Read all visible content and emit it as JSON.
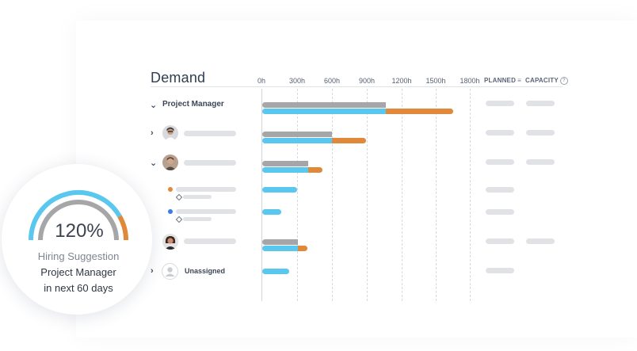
{
  "demand": {
    "title": "Demand",
    "ticks": [
      "0h",
      "300h",
      "600h",
      "900h",
      "1200h",
      "1500h",
      "1800h"
    ],
    "columns": {
      "planned": "PLANNED",
      "capacity": "CAPACITY",
      "planned_icon": "sort-icon",
      "capacity_icon": "help-icon"
    },
    "rows": [
      {
        "label": "Project Manager",
        "expander": "expanded",
        "gray_hours": 1070,
        "blue_hours": 1070,
        "orange_hours": 580
      },
      {
        "label": "",
        "expander": "collapsed",
        "avatar": "person-1",
        "gray_hours": 600,
        "blue_hours": 600,
        "orange_hours": 300
      },
      {
        "label": "",
        "expander": "expanded",
        "avatar": "person-2",
        "gray_hours": 400,
        "blue_hours": 400,
        "orange_hours": 120
      },
      {
        "label": "",
        "dot_color": "#e0893a",
        "blue_hours": 300
      },
      {
        "label": "",
        "dot_color": "#3b7de0",
        "blue_hours": 165
      },
      {
        "label": "",
        "avatar": "person-3",
        "gray_hours": 310,
        "blue_hours": 310,
        "orange_hours": 80
      },
      {
        "label": "Unassigned",
        "expander": "collapsed",
        "avatar": "unassigned-icon",
        "blue_hours": 230
      }
    ]
  },
  "hiring": {
    "percent": "120%",
    "line1": "Hiring Suggestion",
    "line2": "Project Manager",
    "line3": "in next 60 days",
    "gauge_fraction": 1.2,
    "colors": {
      "blue": "#59c7ee",
      "gray": "#a6a6a8",
      "orange": "#e0893a"
    }
  }
}
